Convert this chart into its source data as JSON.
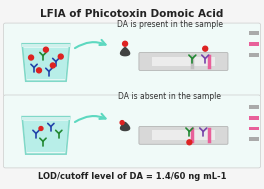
{
  "title": "LFIA of Phicotoxin Domoic Acid",
  "title_fontsize": 7.5,
  "bottom_text_plain": "LOD/cutoff level of DA = 1.4/60 ng mL",
  "bottom_superscript": "-1",
  "label_top": "DA is present in the sample",
  "label_bottom": "DA is absent in the sample",
  "bg_color": "#f5f5f5",
  "panel_bg_top": "#e8f7f5",
  "panel_bg_bot": "#e8f7f5",
  "strip_gray": "#c0c0c0",
  "strip_pink": "#e8609a",
  "arrow_color": "#5dd8c0",
  "beaker_water": "#b8eee8",
  "beaker_rim": "#80d8c8"
}
